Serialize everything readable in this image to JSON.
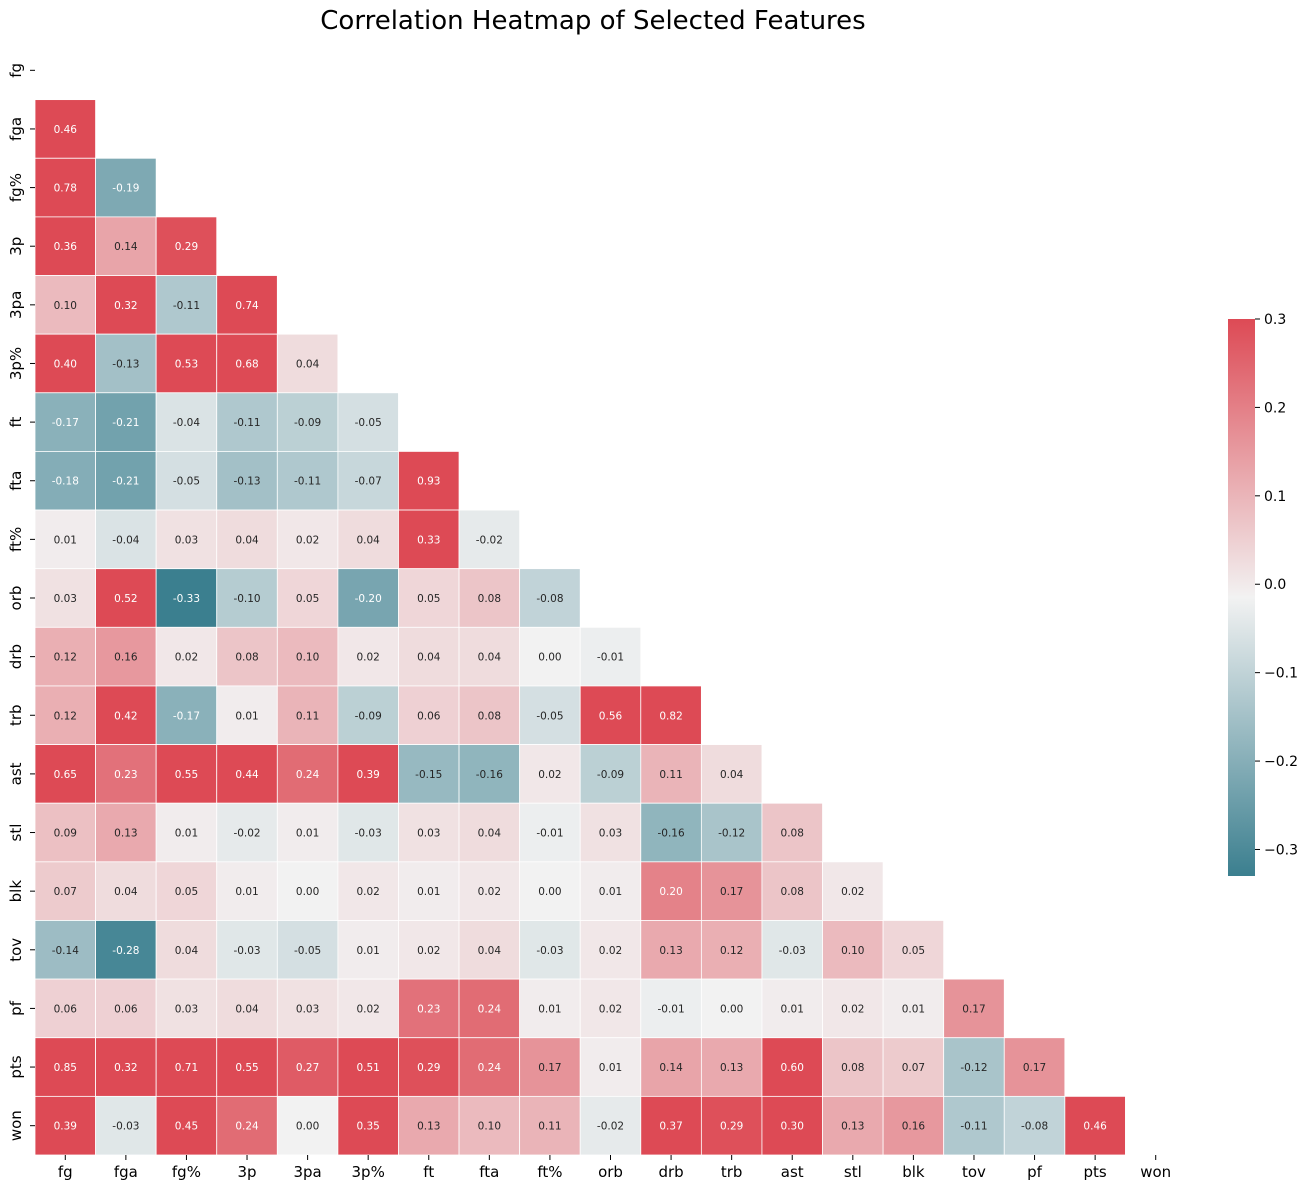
{
  "chart_data": {
    "type": "heatmap",
    "title": "Correlation Heatmap of Selected Features",
    "labels": [
      "fg",
      "fga",
      "fg%",
      "3p",
      "3pa",
      "3p%",
      "ft",
      "fta",
      "ft%",
      "orb",
      "drb",
      "trb",
      "ast",
      "stl",
      "blk",
      "tov",
      "pf",
      "pts",
      "won"
    ],
    "mask": "upper-triangle-including-diagonal",
    "vmin": -0.3,
    "vmax": 0.3,
    "colorbar_ticks": [
      0.3,
      0.2,
      0.1,
      0.0,
      -0.1,
      -0.2,
      -0.3
    ],
    "colorbar_tick_labels": [
      "0.3",
      "0.2",
      "0.1",
      "0.0",
      "−0.1",
      "−0.2",
      "−0.3"
    ],
    "colors": {
      "negative": "#3b7f8f",
      "center": "#f2f2f2",
      "positive": "#dd4a55"
    },
    "values": [
      [],
      [
        0.46
      ],
      [
        0.78,
        -0.19
      ],
      [
        0.36,
        0.14,
        0.29
      ],
      [
        0.1,
        0.32,
        -0.11,
        0.74
      ],
      [
        0.4,
        -0.13,
        0.53,
        0.68,
        0.04
      ],
      [
        -0.17,
        -0.21,
        -0.04,
        -0.11,
        -0.09,
        -0.05
      ],
      [
        -0.18,
        -0.21,
        -0.05,
        -0.13,
        -0.11,
        -0.07,
        0.93
      ],
      [
        0.01,
        -0.04,
        0.03,
        0.04,
        0.02,
        0.04,
        0.33,
        -0.02
      ],
      [
        0.03,
        0.52,
        -0.33,
        -0.1,
        0.05,
        -0.2,
        0.05,
        0.08,
        -0.08
      ],
      [
        0.12,
        0.16,
        0.02,
        0.08,
        0.1,
        0.02,
        0.04,
        0.04,
        -0.0,
        -0.01
      ],
      [
        0.12,
        0.42,
        -0.17,
        0.01,
        0.11,
        -0.09,
        0.06,
        0.08,
        -0.05,
        0.56,
        0.82
      ],
      [
        0.65,
        0.23,
        0.55,
        0.44,
        0.24,
        0.39,
        -0.15,
        -0.16,
        0.02,
        -0.09,
        0.11,
        0.04
      ],
      [
        0.09,
        0.13,
        0.01,
        -0.02,
        0.01,
        -0.03,
        0.03,
        0.04,
        -0.01,
        0.03,
        -0.16,
        -0.12,
        0.08
      ],
      [
        0.07,
        0.04,
        0.05,
        0.01,
        -0.0,
        0.02,
        0.01,
        0.02,
        -0.0,
        0.01,
        0.2,
        0.17,
        0.08,
        0.02
      ],
      [
        -0.14,
        -0.28,
        0.04,
        -0.03,
        -0.05,
        0.01,
        0.02,
        0.04,
        -0.03,
        0.02,
        0.13,
        0.12,
        -0.03,
        0.1,
        0.05
      ],
      [
        0.06,
        0.06,
        0.03,
        0.04,
        0.03,
        0.02,
        0.23,
        0.24,
        0.01,
        0.02,
        -0.01,
        0.0,
        0.01,
        0.02,
        0.01,
        0.17
      ],
      [
        0.85,
        0.32,
        0.71,
        0.55,
        0.27,
        0.51,
        0.29,
        0.24,
        0.17,
        0.01,
        0.14,
        0.13,
        0.6,
        0.08,
        0.07,
        -0.12,
        0.17
      ],
      [
        0.39,
        -0.03,
        0.45,
        0.24,
        0.0,
        0.35,
        0.13,
        0.1,
        0.11,
        -0.02,
        0.37,
        0.29,
        0.3,
        0.13,
        0.16,
        -0.11,
        -0.08,
        0.46
      ]
    ]
  }
}
